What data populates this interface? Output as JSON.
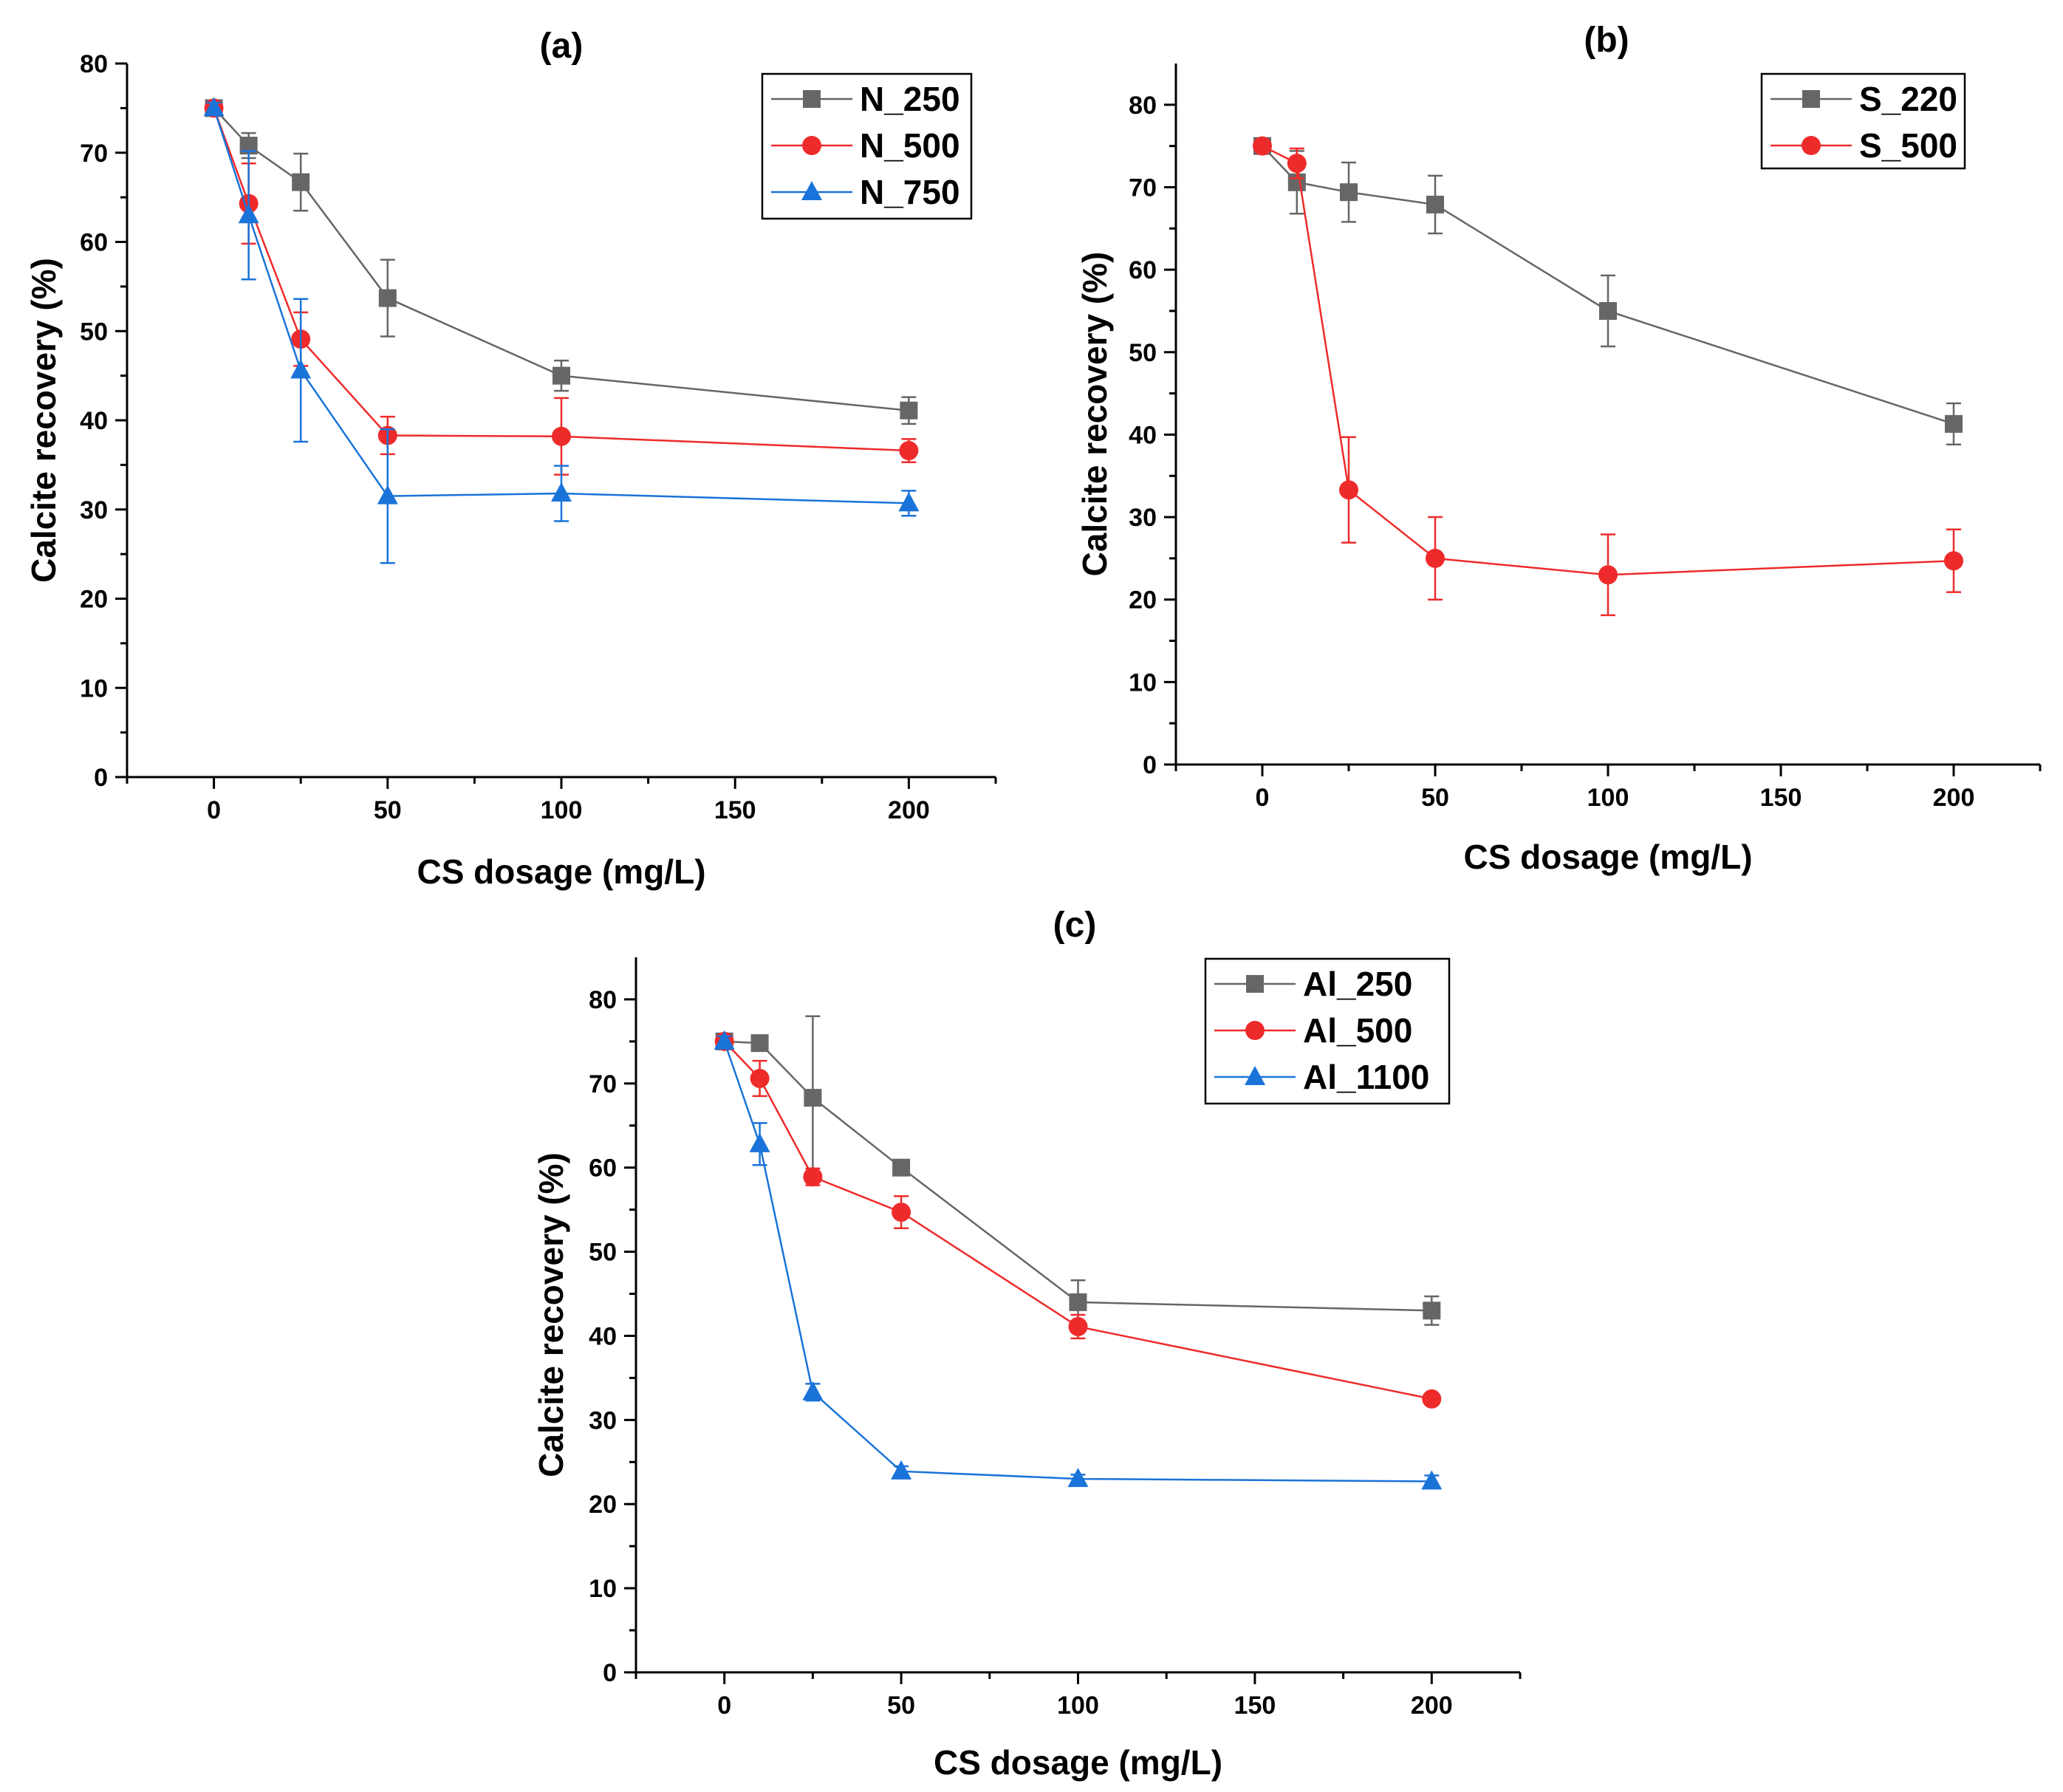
{
  "chart_data": [
    {
      "type": "line",
      "panel": "(a)",
      "xlabel": "CS dosage (mg/L)",
      "ylabel": "Calcite recovery (%)",
      "xlim": [
        -25,
        225
      ],
      "ylim": [
        0,
        80
      ],
      "xticks": [
        0,
        50,
        100,
        150,
        200
      ],
      "yticks": [
        0,
        10,
        20,
        30,
        40,
        50,
        60,
        70,
        80
      ],
      "x": [
        0,
        10,
        25,
        50,
        100,
        200
      ],
      "series": [
        {
          "name": "N_250",
          "color": "#666666",
          "marker": "square",
          "values": [
            75,
            70.8,
            66.7,
            53.7,
            45,
            41.1
          ],
          "errors": [
            0.6,
            1.4,
            3.2,
            4.3,
            1.7,
            1.5
          ]
        },
        {
          "name": "N_500",
          "color": "#ee2b2b",
          "marker": "circle",
          "values": [
            75,
            64.3,
            49.1,
            38.3,
            38.2,
            36.6
          ],
          "errors": [
            0.6,
            4.5,
            3.0,
            2.1,
            4.3,
            1.3
          ]
        },
        {
          "name": "N_750",
          "color": "#1a73d9",
          "marker": "triangle",
          "values": [
            75,
            63,
            45.6,
            31.5,
            31.8,
            30.7
          ],
          "errors": [
            0.6,
            7.2,
            8.0,
            7.5,
            3.1,
            1.4
          ]
        }
      ]
    },
    {
      "type": "line",
      "panel": "(b)",
      "xlabel": "CS dosage (mg/L)",
      "ylabel": "Calcite recovery (%)",
      "xlim": [
        -25,
        225
      ],
      "ylim": [
        0,
        85
      ],
      "xticks": [
        0,
        50,
        100,
        150,
        200
      ],
      "yticks": [
        0,
        10,
        20,
        30,
        40,
        50,
        60,
        70,
        80
      ],
      "x": [
        0,
        10,
        25,
        50,
        100,
        200
      ],
      "series": [
        {
          "name": "S_220",
          "color": "#666666",
          "marker": "square",
          "values": [
            75,
            70.6,
            69.4,
            67.9,
            55,
            41.3
          ],
          "errors": [
            0.6,
            3.8,
            3.6,
            3.5,
            4.3,
            2.5
          ]
        },
        {
          "name": "S_500",
          "color": "#ee2b2b",
          "marker": "circle",
          "values": [
            75,
            72.9,
            33.3,
            25,
            23,
            24.7
          ],
          "errors": [
            0.6,
            1.8,
            6.4,
            5.0,
            4.9,
            3.8
          ]
        }
      ]
    },
    {
      "type": "line",
      "panel": "(c)",
      "xlabel": "CS dosage (mg/L)",
      "ylabel": "Calcite recovery (%)",
      "xlim": [
        -25,
        225
      ],
      "ylim": [
        0,
        85
      ],
      "xticks": [
        0,
        50,
        100,
        150,
        200
      ],
      "yticks": [
        0,
        10,
        20,
        30,
        40,
        50,
        60,
        70,
        80
      ],
      "x": [
        0,
        10,
        25,
        50,
        100,
        200
      ],
      "series": [
        {
          "name": "Al_250",
          "color": "#666666",
          "marker": "square",
          "values": [
            75,
            74.8,
            68.3,
            60,
            44,
            43
          ],
          "errors": [
            0.6,
            0.5,
            9.7,
            0.5,
            2.6,
            1.7
          ]
        },
        {
          "name": "Al_500",
          "color": "#ee2b2b",
          "marker": "circle",
          "values": [
            75,
            70.6,
            58.9,
            54.7,
            41.1,
            32.5
          ],
          "errors": [
            0.6,
            2.1,
            1.0,
            1.9,
            1.4,
            0.4
          ]
        },
        {
          "name": "Al_1100",
          "color": "#1a73d9",
          "marker": "triangle",
          "values": [
            75,
            62.8,
            33.3,
            23.9,
            23,
            22.7
          ],
          "errors": [
            0.6,
            2.5,
            1.0,
            0.6,
            0.5,
            0.7
          ]
        }
      ]
    }
  ]
}
